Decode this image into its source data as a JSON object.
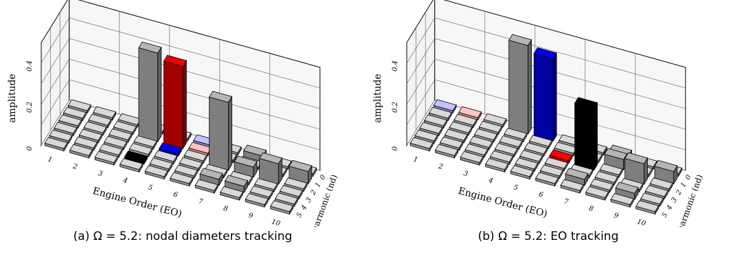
{
  "chart_data": [
    {
      "type": "bar3d",
      "caption": "(a) Ω = 5.2: nodal diameters tracking",
      "xlabel": "Engine Order (EO)",
      "ylabel": "harmonic (nd)",
      "zlabel": "amplitude",
      "x_ticks": [
        "1",
        "2",
        "3",
        "4",
        "5",
        "6",
        "7",
        "8",
        "9",
        "10"
      ],
      "y_ticks": [
        "0",
        "1",
        "2",
        "3",
        "4",
        "5"
      ],
      "z_ticks": [
        "0",
        "0.2",
        "0.4"
      ],
      "zlim": [
        0,
        0.5
      ],
      "bars": [
        {
          "eo": 4,
          "nd": 4,
          "value": 0.0,
          "color": "#000000"
        },
        {
          "eo": 4,
          "nd": 1,
          "value": 0.43,
          "color": "#9e9e9e"
        },
        {
          "eo": 5,
          "nd": 1,
          "value": 0.4,
          "color": "#cc0000"
        },
        {
          "eo": 5,
          "nd": 2,
          "value": 0.0,
          "color": "#0000cc"
        },
        {
          "eo": 6,
          "nd": 1,
          "value": 0.0,
          "color": "#ffaaaa"
        },
        {
          "eo": 6,
          "nd": 0,
          "value": 0.0,
          "color": "#aaaaff"
        },
        {
          "eo": 7,
          "nd": 2,
          "value": 0.33,
          "color": "#9e9e9e"
        },
        {
          "eo": 9,
          "nd": 2,
          "value": 0.1,
          "color": "#9e9e9e"
        },
        {
          "eo": 8,
          "nd": 2,
          "value": 0.05,
          "color": "#9e9e9e"
        },
        {
          "eo": 10,
          "nd": 1,
          "value": 0.06,
          "color": "#9e9e9e"
        },
        {
          "eo": 8,
          "nd": 0,
          "value": 0.03,
          "color": "#9e9e9e"
        },
        {
          "eo": 8,
          "nd": 4,
          "value": 0.03,
          "color": "#9e9e9e"
        },
        {
          "eo": 7,
          "nd": 4,
          "value": 0.03,
          "color": "#9e9e9e"
        }
      ]
    },
    {
      "type": "bar3d",
      "caption": "(b) Ω = 5.2: EO tracking",
      "xlabel": "Engine Order (EO)",
      "ylabel": "harmonic (nd)",
      "zlabel": "amplitude",
      "x_ticks": [
        "1",
        "2",
        "3",
        "4",
        "5",
        "6",
        "7",
        "8",
        "9",
        "10"
      ],
      "y_ticks": [
        "0",
        "1",
        "2",
        "3",
        "4",
        "5"
      ],
      "z_ticks": [
        "0",
        "0.2",
        "0.4"
      ],
      "zlim": [
        0,
        0.5
      ],
      "bars": [
        {
          "eo": 1,
          "nd": 0,
          "value": 0.0,
          "color": "#aaaaff"
        },
        {
          "eo": 2,
          "nd": 0,
          "value": 0.0,
          "color": "#ffaaaa"
        },
        {
          "eo": 4,
          "nd": 0,
          "value": 0.43,
          "color": "#9e9e9e"
        },
        {
          "eo": 5,
          "nd": 0,
          "value": 0.4,
          "color": "#0000cc"
        },
        {
          "eo": 6,
          "nd": 2,
          "value": 0.0,
          "color": "#ff0000"
        },
        {
          "eo": 7,
          "nd": 2,
          "value": 0.3,
          "color": "#000000"
        },
        {
          "eo": 9,
          "nd": 2,
          "value": 0.1,
          "color": "#9e9e9e"
        },
        {
          "eo": 8,
          "nd": 1,
          "value": 0.05,
          "color": "#9e9e9e"
        },
        {
          "eo": 10,
          "nd": 1,
          "value": 0.06,
          "color": "#9e9e9e"
        },
        {
          "eo": 8,
          "nd": 0,
          "value": 0.03,
          "color": "#9e9e9e"
        },
        {
          "eo": 7,
          "nd": 4,
          "value": 0.03,
          "color": "#9e9e9e"
        },
        {
          "eo": 9,
          "nd": 4,
          "value": 0.03,
          "color": "#9e9e9e"
        }
      ]
    }
  ]
}
